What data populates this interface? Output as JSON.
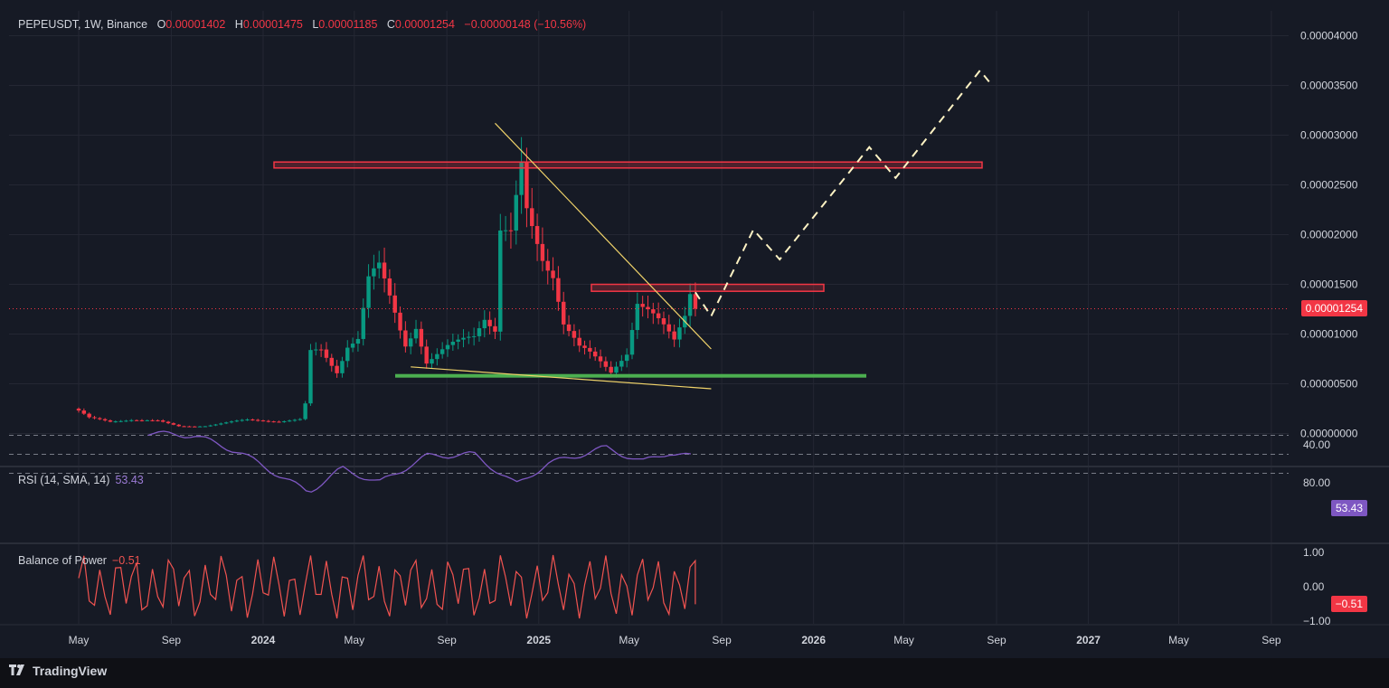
{
  "header": {
    "symbol": "PEPEUSDT, 1W, Binance",
    "o_key": "O",
    "o_val": "0.00001402",
    "h_key": "H",
    "h_val": "0.00001475",
    "l_key": "L",
    "l_val": "0.00001185",
    "c_key": "C",
    "c_val": "0.00001254",
    "change": "−0.00000148 (−10.56%)"
  },
  "price_axis_labels": [
    "0.00004000",
    "0.00003500",
    "0.00003000",
    "0.00002500",
    "0.00002000",
    "0.00001500",
    "0.00001000",
    "0.00000500",
    "0.00000000"
  ],
  "last_price_label": "0.00001254",
  "rsi": {
    "label": "RSI (14, SMA, 14)",
    "value": "53.43",
    "axis_labels": [
      "80.00",
      "40.00"
    ],
    "last_label": "53.43"
  },
  "bop": {
    "label": "Balance of Power",
    "value": "−0.51",
    "axis_labels": [
      "1.00",
      "0.00",
      "−1.00"
    ],
    "last_label": "−0.51"
  },
  "time_axis_labels": [
    "May",
    "Sep",
    "2024",
    "May",
    "Sep",
    "2025",
    "May",
    "Sep",
    "2026",
    "May",
    "Sep",
    "2027",
    "May",
    "Sep"
  ],
  "brand": "TradingView",
  "colors": {
    "background": "#161a25",
    "up": "#089981",
    "down": "#f23645",
    "trendline": "#f0d36a",
    "rsi": "#7e57c2",
    "bop": "#f05350",
    "support": "#4caf50",
    "projection": "#fff3c4"
  },
  "chart_data": {
    "type": "candlestick",
    "interval": "1W",
    "exchange": "Binance",
    "ylim": [
      0,
      4.2e-05
    ],
    "x_start": "2023-05-01",
    "x_end": "2027-09-30",
    "last_close": 1.254e-05,
    "candles_weekly_close_approx": [
      {
        "date": "2023-05-01",
        "close": 2.4e-06
      },
      {
        "date": "2023-06-12",
        "close": 1.2e-06
      },
      {
        "date": "2023-09-04",
        "close": 7e-07
      },
      {
        "date": "2023-12-25",
        "close": 1.2e-06
      },
      {
        "date": "2024-01-29",
        "close": 1.5e-06
      },
      {
        "date": "2024-03-04",
        "close": 8.2e-06
      },
      {
        "date": "2024-03-18",
        "close": 8.2e-06
      },
      {
        "date": "2024-05-27",
        "close": 1.6e-05
      },
      {
        "date": "2024-06-24",
        "close": 1.25e-05
      },
      {
        "date": "2024-08-05",
        "close": 7.3e-06
      },
      {
        "date": "2024-10-14",
        "close": 9.8e-06
      },
      {
        "date": "2024-11-11",
        "close": 2.1e-05
      },
      {
        "date": "2024-12-09",
        "close": 2.68e-05
      },
      {
        "date": "2025-01-06",
        "close": 1.75e-05
      },
      {
        "date": "2025-02-24",
        "close": 8.2e-06
      },
      {
        "date": "2025-03-31",
        "close": 6.5e-06
      },
      {
        "date": "2025-05-12",
        "close": 1.4e-05
      },
      {
        "date": "2025-06-23",
        "close": 1e-05
      },
      {
        "date": "2025-07-21",
        "close": 1.4e-05
      },
      {
        "date": "2025-07-28",
        "close": 1.254e-05
      }
    ],
    "drawings": {
      "resistance_zone_high": [
        2.73e-05,
        2.67e-05
      ],
      "resistance_zone_mid": [
        1.5e-05,
        1.43e-05
      ],
      "support_level": 5.8e-06,
      "descending_trendline": [
        [
          "2024-11-04",
          3.12e-05
        ],
        [
          "2025-08-18",
          8.5e-06
        ]
      ],
      "lower_trendline": [
        [
          "2024-07-15",
          6.7e-06
        ],
        [
          "2025-08-18",
          4.5e-06
        ]
      ],
      "projection_path": [
        [
          "2025-07-28",
          1.42e-05
        ],
        [
          "2025-08-18",
          1.18e-05
        ],
        [
          "2025-10-13",
          2.05e-05
        ],
        [
          "2025-11-17",
          1.75e-05
        ],
        [
          "2026-03-16",
          2.88e-05
        ],
        [
          "2026-04-20",
          2.57e-05
        ],
        [
          "2026-08-10",
          3.65e-05
        ],
        [
          "2026-08-24",
          3.52e-05
        ]
      ]
    },
    "rsi_series_approx": [
      {
        "date": "2023-08-01",
        "value": 28
      },
      {
        "date": "2023-10-01",
        "value": 30
      },
      {
        "date": "2023-12-01",
        "value": 48
      },
      {
        "date": "2024-03-01",
        "value": 90
      },
      {
        "date": "2024-04-15",
        "value": 65
      },
      {
        "date": "2024-06-03",
        "value": 80
      },
      {
        "date": "2024-08-05",
        "value": 52
      },
      {
        "date": "2024-10-07",
        "value": 50
      },
      {
        "date": "2024-12-02",
        "value": 82
      },
      {
        "date": "2025-01-13",
        "value": 60
      },
      {
        "date": "2025-03-31",
        "value": 43
      },
      {
        "date": "2025-05-19",
        "value": 58
      },
      {
        "date": "2025-06-23",
        "value": 48
      },
      {
        "date": "2025-07-28",
        "value": 53.43
      }
    ]
  }
}
